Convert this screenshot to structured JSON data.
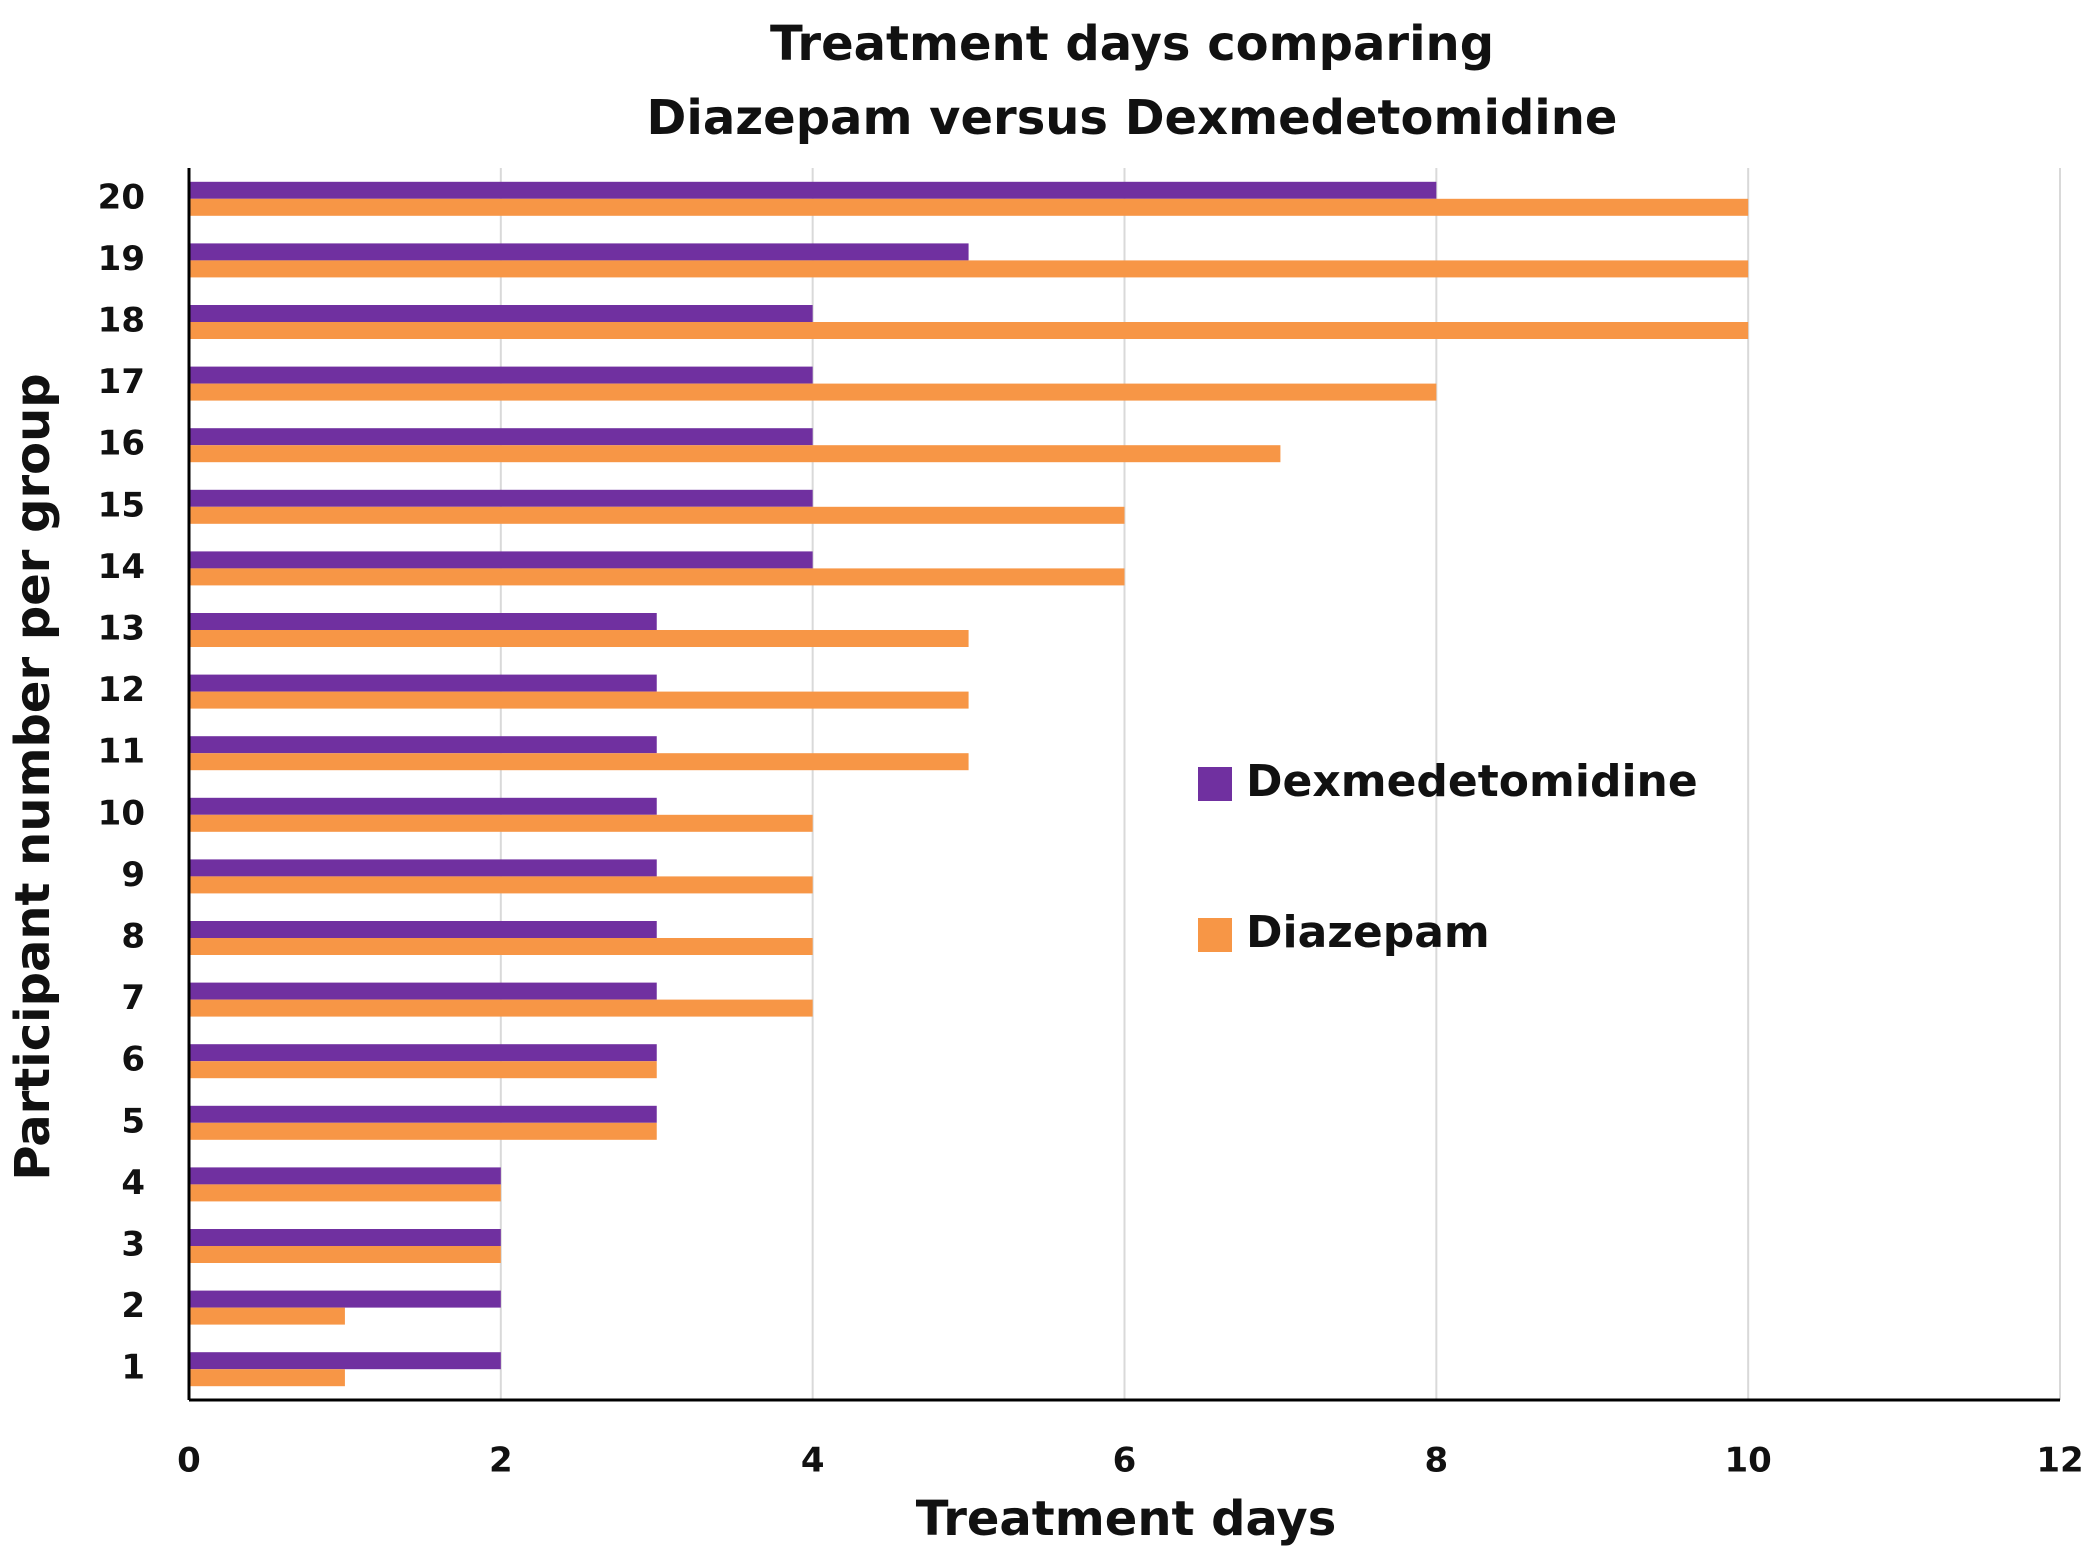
{
  "chart_data": {
    "type": "hbar",
    "title": [
      "Treatment days comparing",
      "Diazepam versus Dexmedetomidine"
    ],
    "x_label": "Treatment days",
    "y_label": "Participant number per group",
    "categories": [
      "1",
      "2",
      "3",
      "4",
      "5",
      "6",
      "7",
      "8",
      "9",
      "10",
      "11",
      "12",
      "13",
      "14",
      "15",
      "16",
      "17",
      "18",
      "19",
      "20"
    ],
    "series": [
      {
        "name": "Dexmedetomidine",
        "color": "#7030a0",
        "values": [
          2,
          2,
          2,
          2,
          3,
          3,
          3,
          3,
          3,
          3,
          3,
          3,
          3,
          4,
          4,
          4,
          4,
          4,
          5,
          8
        ]
      },
      {
        "name": "Diazepam",
        "color": "#f79646",
        "values": [
          1,
          1,
          2,
          2,
          3,
          3,
          4,
          4,
          4,
          4,
          5,
          5,
          5,
          6,
          6,
          7,
          8,
          10,
          10,
          10
        ]
      }
    ],
    "xlim": [
      0,
      12
    ],
    "xticks": [
      0,
      2,
      4,
      6,
      8,
      10,
      12
    ],
    "grid": true,
    "legend": "center-right"
  }
}
